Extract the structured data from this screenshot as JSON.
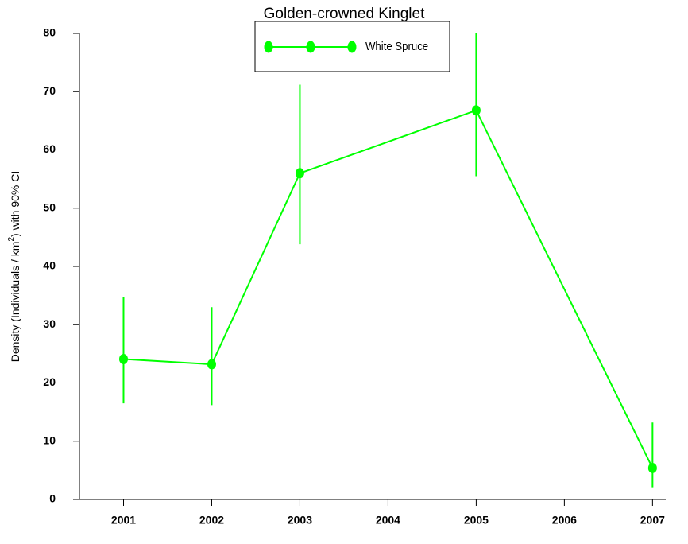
{
  "chart_data": {
    "type": "line",
    "title": "Golden-crowned Kinglet",
    "y_label": [
      "Density (Individuals / km",
      "2",
      ") with 90% CI"
    ],
    "x": [
      2001,
      2002,
      2003,
      2005,
      2007
    ],
    "series": [
      {
        "name": "White Spruce",
        "color": "#00ff00",
        "values": [
          24.1,
          23.2,
          56.0,
          66.8,
          5.4
        ],
        "lower": [
          16.5,
          16.2,
          43.8,
          55.5,
          2.1
        ],
        "upper": [
          34.8,
          33.0,
          71.2,
          80.0,
          13.2
        ]
      }
    ],
    "xlim": [
      2000.5,
      2007.15
    ],
    "xticks": [
      2001,
      2002,
      2003,
      2004,
      2005,
      2006,
      2007
    ],
    "ylim": [
      0,
      80
    ],
    "yticks": [
      0,
      10,
      20,
      30,
      40,
      50,
      60,
      70,
      80
    ],
    "legend": "top"
  }
}
